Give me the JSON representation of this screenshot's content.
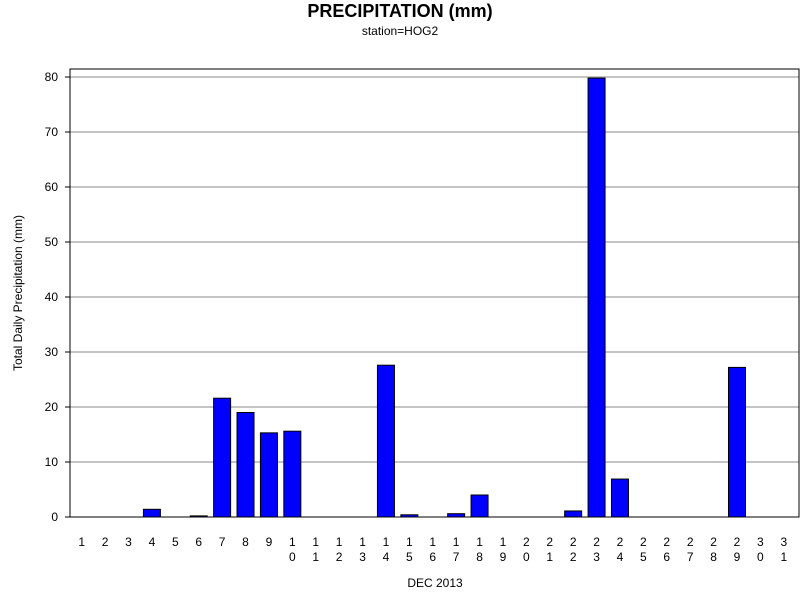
{
  "chart_data": {
    "type": "bar",
    "title": "PRECIPITATION (mm)",
    "subtitle": "station=HOG2",
    "xlabel": "DEC 2013",
    "ylabel": "Total Daily Precipitation (mm)",
    "ylim": [
      0,
      80
    ],
    "yticks": [
      0,
      10,
      20,
      30,
      40,
      50,
      60,
      70,
      80
    ],
    "grid": true,
    "bar_color": "#0000ff",
    "categories": [
      [
        "1"
      ],
      [
        "2"
      ],
      [
        "3"
      ],
      [
        "4"
      ],
      [
        "5"
      ],
      [
        "6"
      ],
      [
        "7"
      ],
      [
        "8"
      ],
      [
        "9"
      ],
      [
        "1",
        "0"
      ],
      [
        "1",
        "1"
      ],
      [
        "1",
        "2"
      ],
      [
        "1",
        "3"
      ],
      [
        "1",
        "4"
      ],
      [
        "1",
        "5"
      ],
      [
        "1",
        "6"
      ],
      [
        "1",
        "7"
      ],
      [
        "1",
        "8"
      ],
      [
        "1",
        "9"
      ],
      [
        "2",
        "0"
      ],
      [
        "2",
        "1"
      ],
      [
        "2",
        "2"
      ],
      [
        "2",
        "3"
      ],
      [
        "2",
        "4"
      ],
      [
        "2",
        "5"
      ],
      [
        "2",
        "6"
      ],
      [
        "2",
        "7"
      ],
      [
        "2",
        "8"
      ],
      [
        "2",
        "9"
      ],
      [
        "3",
        "0"
      ],
      [
        "3",
        "1"
      ]
    ],
    "values": [
      0,
      0,
      0,
      1.4,
      0,
      0.2,
      21.6,
      19.0,
      15.3,
      15.6,
      0,
      0,
      0,
      27.6,
      0.4,
      0,
      0.6,
      4.0,
      0,
      0,
      0,
      1.1,
      79.8,
      6.9,
      0,
      0,
      0,
      0,
      27.2,
      0,
      0
    ]
  }
}
